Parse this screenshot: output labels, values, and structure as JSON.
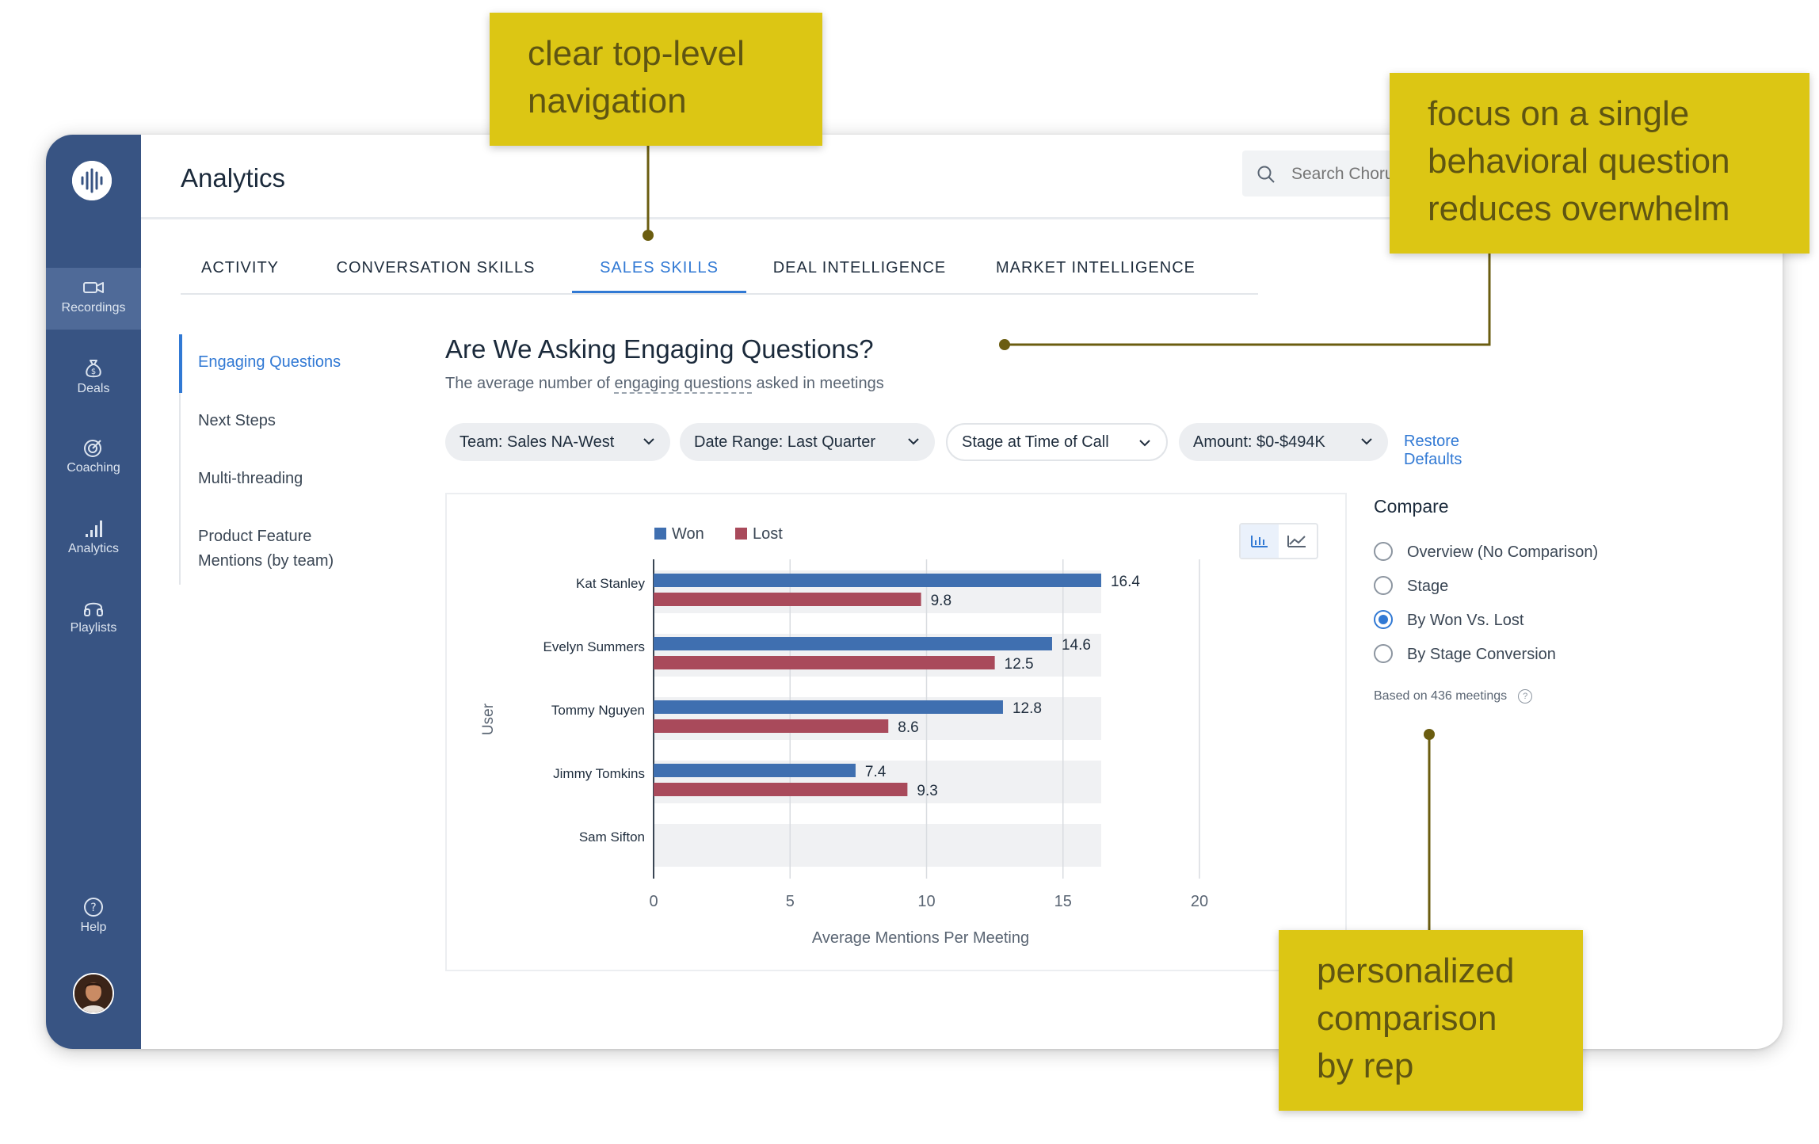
{
  "app": {
    "page_title": "Analytics",
    "search_placeholder": "Search Chorus"
  },
  "sidebar": {
    "items": [
      {
        "label": "Recordings",
        "icon": "video-camera-icon",
        "active": true
      },
      {
        "label": "Deals",
        "icon": "money-bag-icon",
        "active": false
      },
      {
        "label": "Coaching",
        "icon": "target-icon",
        "active": false
      },
      {
        "label": "Analytics",
        "icon": "bar-chart-icon",
        "active": false
      },
      {
        "label": "Playlists",
        "icon": "headphones-icon",
        "active": false
      }
    ],
    "help_label": "Help"
  },
  "tabs": [
    {
      "label": "ACTIVITY",
      "active": false
    },
    {
      "label": "CONVERSATION SKILLS",
      "active": false
    },
    {
      "label": "SALES SKILLS",
      "active": true
    },
    {
      "label": "DEAL INTELLIGENCE",
      "active": false
    },
    {
      "label": "MARKET INTELLIGENCE",
      "active": false
    }
  ],
  "subnav": [
    {
      "label": "Engaging Questions",
      "active": true
    },
    {
      "label": "Next Steps",
      "active": false
    },
    {
      "label": "Multi-threading",
      "active": false
    },
    {
      "label": "Product Feature Mentions (by team)",
      "active": false
    }
  ],
  "question": {
    "title": "Are We Asking Engaging Questions?",
    "subtitle_before": "The average number of ",
    "subtitle_link": "engaging questions",
    "subtitle_after": " asked in meetings"
  },
  "filters": [
    {
      "label": "Team: Sales NA-West"
    },
    {
      "label": "Date Range: Last Quarter"
    },
    {
      "label": "Stage at Time of Call"
    },
    {
      "label": "Amount: $0-$494K"
    }
  ],
  "restore_label": "Restore Defaults",
  "compare": {
    "title": "Compare",
    "options": [
      {
        "label": "Overview (No Comparison)",
        "checked": false
      },
      {
        "label": "Stage",
        "checked": false
      },
      {
        "label": "By Won Vs. Lost",
        "checked": true
      },
      {
        "label": "By Stage Conversion",
        "checked": false
      }
    ],
    "based_on": "Based on 436 meetings"
  },
  "colors": {
    "won": "#3f6fb0",
    "lost": "#a94a5b",
    "accent": "#3179d4",
    "sidebar": "#385483",
    "annotation": "#dcc614"
  },
  "chart_data": {
    "type": "bar",
    "orientation": "horizontal",
    "categories": [
      "Kat Stanley",
      "Evelyn Summers",
      "Tommy Nguyen",
      "Jimmy Tomkins",
      "Sam Sifton"
    ],
    "series": [
      {
        "name": "Won",
        "values": [
          16.4,
          14.6,
          12.8,
          7.4,
          null
        ]
      },
      {
        "name": "Lost",
        "values": [
          9.8,
          12.5,
          8.6,
          9.3,
          null
        ]
      }
    ],
    "xlabel": "Average Mentions Per Meeting",
    "ylabel": "User",
    "xlim": [
      0,
      20
    ],
    "xticks": [
      0,
      5,
      10,
      15,
      20
    ],
    "grid": true,
    "legend": "top-left"
  },
  "annotations": [
    {
      "lines": [
        "clear top-level",
        "navigation"
      ]
    },
    {
      "lines": [
        "focus on a single",
        "behavioral question",
        "reduces overwhelm"
      ]
    },
    {
      "lines": [
        "personalized",
        "comparison",
        "by rep"
      ]
    }
  ]
}
